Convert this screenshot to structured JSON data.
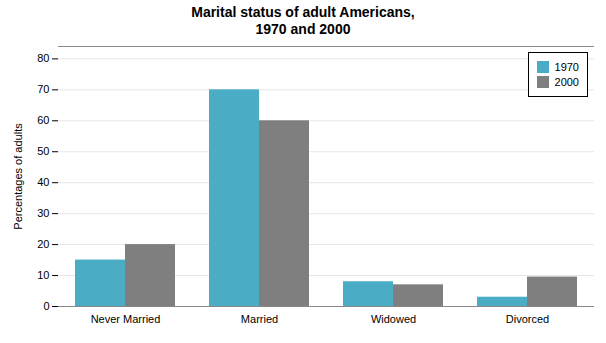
{
  "chart_data": {
    "type": "bar",
    "title": "Marital status of adult Americans,\n1970 and 2000",
    "categories": [
      "Never Married",
      "Married",
      "Widowed",
      "Divorced"
    ],
    "series": [
      {
        "name": "1970",
        "color": "#4bacc6",
        "values": [
          15,
          70,
          8,
          3
        ]
      },
      {
        "name": "2000",
        "color": "#7f7f7f",
        "values": [
          20,
          60,
          7,
          9.5
        ]
      }
    ],
    "ylabel": "Percentages of adults",
    "ylim": [
      0,
      84
    ],
    "yticks": [
      0,
      10,
      20,
      30,
      40,
      50,
      60,
      70,
      80
    ],
    "grid": true,
    "legend": "upper right"
  }
}
